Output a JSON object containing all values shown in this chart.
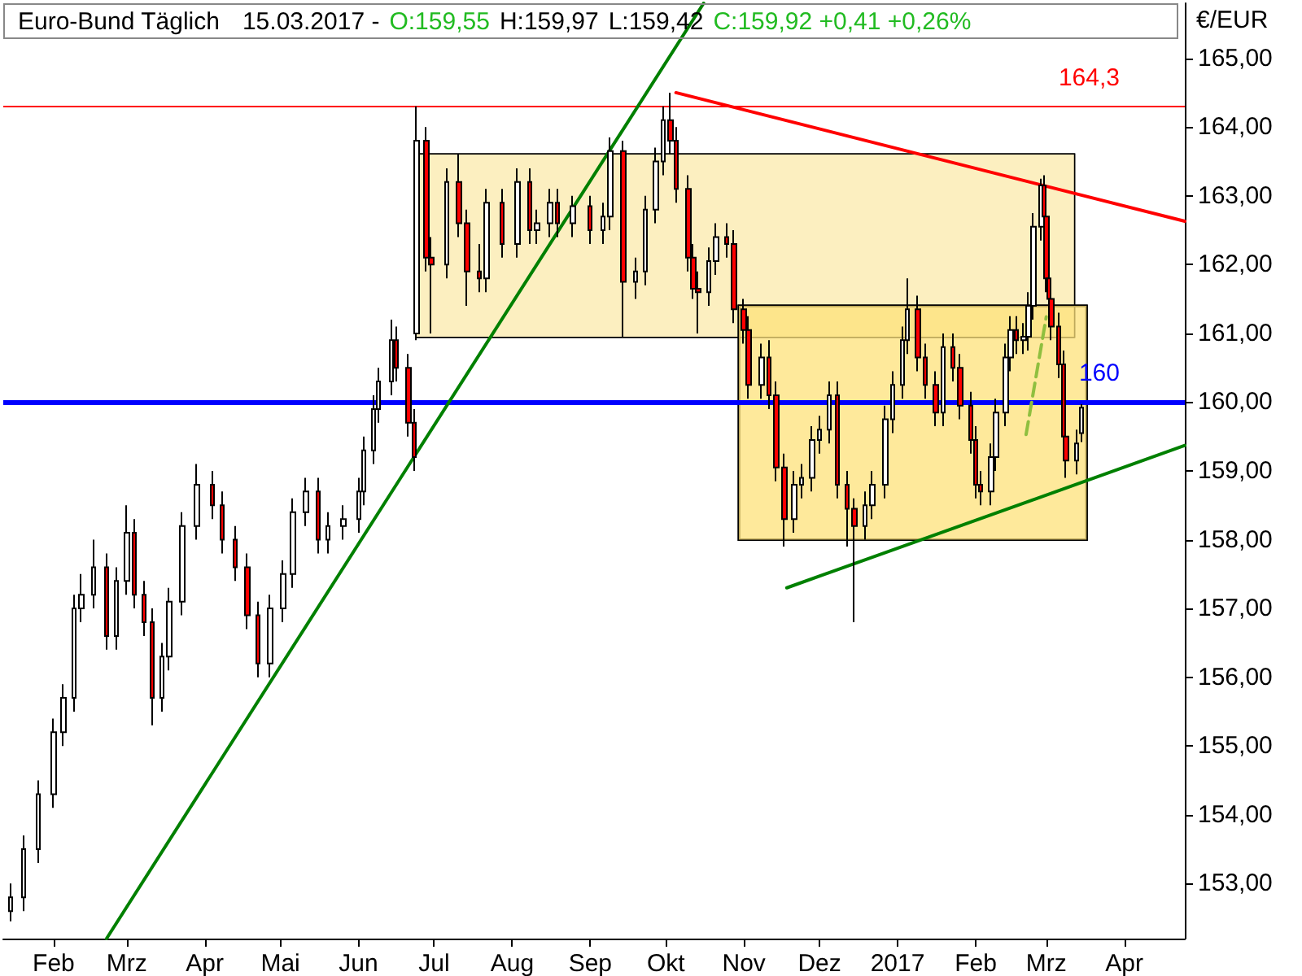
{
  "chart_data": {
    "type": "candlestick",
    "title": "Euro-Bund Täglich",
    "ylabel": "€/EUR",
    "annotations": [
      "15.03.2017 -",
      "O:159,55",
      "H:159,97",
      "L:159,42",
      "C:159,92 +0,41 +0,26%"
    ],
    "xlim": [
      "2016-01-12",
      "2017-04-25"
    ],
    "xticks": [
      {
        "value": "2016-02-01",
        "label": "Feb"
      },
      {
        "value": "2016-03-01",
        "label": "Mrz"
      },
      {
        "value": "2016-04-01",
        "label": "Apr"
      },
      {
        "value": "2016-05-01",
        "label": "Mai"
      },
      {
        "value": "2016-06-01",
        "label": "Jun"
      },
      {
        "value": "2016-07-01",
        "label": "Jul"
      },
      {
        "value": "2016-08-01",
        "label": "Aug"
      },
      {
        "value": "2016-09-01",
        "label": "Sep"
      },
      {
        "value": "2016-10-01",
        "label": "Okt"
      },
      {
        "value": "2016-11-01",
        "label": "Nov"
      },
      {
        "value": "2016-12-01",
        "label": "Dez"
      },
      {
        "value": "2017-01-01",
        "label": "2017"
      },
      {
        "value": "2017-02-01",
        "label": "Feb"
      },
      {
        "value": "2017-03-01",
        "label": "Mrz"
      },
      {
        "value": "2017-04-01",
        "label": "Apr"
      }
    ],
    "ylim": [
      152.2,
      165.8
    ],
    "yticks": [
      {
        "value": 153,
        "label": "153,00"
      },
      {
        "value": 154,
        "label": "154,00"
      },
      {
        "value": 155,
        "label": "155,00"
      },
      {
        "value": 156,
        "label": "156,00"
      },
      {
        "value": 157,
        "label": "157,00"
      },
      {
        "value": 158,
        "label": "158,00"
      },
      {
        "value": 159,
        "label": "159,00"
      },
      {
        "value": 160,
        "label": "160,00"
      },
      {
        "value": 161,
        "label": "161,00"
      },
      {
        "value": 162,
        "label": "162,00"
      },
      {
        "value": 163,
        "label": "163,00"
      },
      {
        "value": 164,
        "label": "164,00"
      },
      {
        "value": 165,
        "label": "165,00"
      }
    ],
    "grid": false,
    "marker": "none",
    "ref_lines": [
      {
        "axis": "y",
        "value": 160,
        "label": "160",
        "color": "#0000ff"
      },
      {
        "axis": "y",
        "value": 164.3,
        "label": "164,3",
        "color": "#ff0000"
      }
    ],
    "series": [
      {
        "colors": [
          "#ffffff",
          "#ffffff",
          "#ffffff",
          "#ffffff",
          "#ffffff",
          "#ffffff",
          "#ffffff",
          "#ffffff",
          "#ff0000",
          "#ffffff",
          "#ffffff",
          "#ff0000",
          "#ff0000",
          "#ff0000",
          "#ffffff",
          "#ffffff",
          "#ffffff",
          "#ffffff",
          "#ff0000",
          "#ff0000",
          "#ff0000",
          "#ff0000",
          "#ff0000",
          "#ffffff",
          "#ffffff",
          "#ffffff",
          "#ffffff",
          "#ff0000",
          "#ffffff",
          "#ffffff",
          "#ffffff",
          "#ffffff",
          "#ffffff",
          "#ffffff",
          "#ffffff",
          "#ff0000",
          "#ff0000",
          "#ff0000",
          "#ffffff",
          "#ff0000",
          "#ff0000",
          "#ffffff",
          "#ff0000",
          "#ff0000",
          "#ff0000",
          "#ffffff",
          "#ff0000",
          "#ffffff",
          "#ff0000",
          "#ffffff",
          "#ffffff",
          "#ff0000",
          "#ffffff",
          "#ff0000",
          "#ffffff",
          "#ffffff",
          "#ff0000",
          "#ffffff",
          "#ffffff",
          "#ffffff",
          "#ffffff",
          "#ff0000",
          "#ff0000",
          "#ff0000",
          "#ff0000",
          "#ff0000",
          "#ffffff",
          "#ffffff",
          "#ff0000",
          "#ff0000",
          "#ff0000",
          "#ff0000",
          "#ffffff",
          "#ff0000",
          "#ff0000",
          "#ff0000",
          "#ffffff",
          "#ffffff",
          "#ffffff",
          "#ffffff",
          "#ffffff",
          "#ff0000",
          "#ff0000",
          "#ff0000",
          "#ffffff",
          "#ffffff",
          "#ffffff",
          "#ffffff",
          "#ffffff",
          "#ffffff",
          "#ff0000",
          "#ff0000",
          "#ff0000",
          "#ffffff",
          "#ff0000",
          "#ff0000",
          "#ff0000",
          "#ff0000",
          "#ff0000",
          "#ffffff",
          "#ffffff",
          "#ffffff",
          "#ffffff",
          "#ff0000",
          "#ffffff",
          "#ffffff",
          "#ffffff",
          "#ffffff",
          "#ff0000",
          "#ff0000",
          "#ff0000",
          "#ff0000",
          "#ff0000",
          "#ff0000",
          "#ff0000",
          "#ffffff",
          "#ffffff"
        ],
        "x": [
          "2016-01-15",
          "2016-01-20",
          "2016-01-26",
          "2016-02-01",
          "2016-02-05",
          "2016-02-09",
          "2016-02-12",
          "2016-02-17",
          "2016-02-22",
          "2016-02-26",
          "2016-03-01",
          "2016-03-04",
          "2016-03-08",
          "2016-03-11",
          "2016-03-15",
          "2016-03-18",
          "2016-03-23",
          "2016-03-29",
          "2016-04-04",
          "2016-04-08",
          "2016-04-13",
          "2016-04-18",
          "2016-04-22",
          "2016-04-27",
          "2016-05-02",
          "2016-05-06",
          "2016-05-11",
          "2016-05-16",
          "2016-05-20",
          "2016-05-26",
          "2016-06-01",
          "2016-06-03",
          "2016-06-07",
          "2016-06-09",
          "2016-06-14",
          "2016-06-16",
          "2016-06-21",
          "2016-06-23",
          "2016-06-24",
          "2016-06-28",
          "2016-06-30",
          "2016-07-06",
          "2016-07-11",
          "2016-07-14",
          "2016-07-19",
          "2016-07-22",
          "2016-07-28",
          "2016-08-03",
          "2016-08-08",
          "2016-08-11",
          "2016-08-16",
          "2016-08-19",
          "2016-08-25",
          "2016-09-01",
          "2016-09-06",
          "2016-09-09",
          "2016-09-14",
          "2016-09-19",
          "2016-09-23",
          "2016-09-27",
          "2016-09-30",
          "2016-10-03",
          "2016-10-05",
          "2016-10-10",
          "2016-10-12",
          "2016-10-14",
          "2016-10-18",
          "2016-10-21",
          "2016-10-25",
          "2016-10-28",
          "2016-11-01",
          "2016-11-03",
          "2016-11-08",
          "2016-11-11",
          "2016-11-14",
          "2016-11-17",
          "2016-11-21",
          "2016-11-24",
          "2016-11-28",
          "2016-12-01",
          "2016-12-05",
          "2016-12-08",
          "2016-12-12",
          "2016-12-15",
          "2016-12-19",
          "2016-12-22",
          "2016-12-27",
          "2016-12-30",
          "2017-01-03",
          "2017-01-05",
          "2017-01-09",
          "2017-01-12",
          "2017-01-16",
          "2017-01-19",
          "2017-01-23",
          "2017-01-26",
          "2017-01-30",
          "2017-02-01",
          "2017-02-03",
          "2017-02-07",
          "2017-02-09",
          "2017-02-13",
          "2017-02-15",
          "2017-02-17",
          "2017-02-20",
          "2017-02-22",
          "2017-02-24",
          "2017-02-27",
          "2017-02-28",
          "2017-03-01",
          "2017-03-02",
          "2017-03-03",
          "2017-03-06",
          "2017-03-08",
          "2017-03-09",
          "2017-03-13",
          "2017-03-15"
        ],
        "ohlc": [
          [
            152.6,
            153.0,
            152.45,
            152.8
          ],
          [
            152.8,
            153.7,
            152.6,
            153.5
          ],
          [
            153.5,
            154.5,
            153.3,
            154.3
          ],
          [
            154.3,
            155.4,
            154.1,
            155.2
          ],
          [
            155.2,
            155.9,
            155.0,
            155.7
          ],
          [
            155.7,
            157.2,
            155.5,
            157.0
          ],
          [
            157.0,
            157.5,
            156.8,
            157.2
          ],
          [
            157.2,
            158.0,
            157.0,
            157.6
          ],
          [
            157.6,
            157.8,
            156.4,
            156.6
          ],
          [
            156.6,
            157.6,
            156.4,
            157.4
          ],
          [
            157.4,
            158.5,
            157.2,
            158.1
          ],
          [
            158.1,
            158.3,
            157.0,
            157.2
          ],
          [
            157.2,
            157.4,
            156.6,
            156.8
          ],
          [
            156.8,
            157.0,
            155.3,
            155.7
          ],
          [
            155.7,
            156.5,
            155.5,
            156.3
          ],
          [
            156.3,
            157.3,
            156.1,
            157.1
          ],
          [
            157.1,
            158.4,
            156.9,
            158.2
          ],
          [
            158.2,
            159.1,
            158.0,
            158.8
          ],
          [
            158.8,
            159.0,
            158.3,
            158.5
          ],
          [
            158.5,
            158.7,
            157.8,
            158.0
          ],
          [
            158.0,
            158.2,
            157.4,
            157.6
          ],
          [
            157.6,
            157.8,
            156.7,
            156.9
          ],
          [
            156.9,
            157.1,
            156.0,
            156.2
          ],
          [
            156.2,
            157.2,
            156.0,
            157.0
          ],
          [
            157.0,
            157.7,
            156.8,
            157.5
          ],
          [
            157.5,
            158.6,
            157.3,
            158.4
          ],
          [
            158.4,
            158.9,
            158.2,
            158.7
          ],
          [
            158.7,
            158.9,
            157.8,
            158.0
          ],
          [
            158.0,
            158.4,
            157.8,
            158.2
          ],
          [
            158.2,
            158.5,
            158.0,
            158.3
          ],
          [
            158.3,
            158.9,
            158.1,
            158.7
          ],
          [
            158.7,
            159.5,
            158.5,
            159.3
          ],
          [
            159.3,
            160.1,
            159.1,
            159.9
          ],
          [
            159.9,
            160.5,
            159.7,
            160.3
          ],
          [
            160.3,
            161.2,
            160.1,
            160.9
          ],
          [
            160.9,
            161.1,
            160.3,
            160.5
          ],
          [
            160.5,
            160.7,
            159.5,
            159.7
          ],
          [
            159.7,
            159.9,
            159.0,
            159.2
          ],
          [
            161.0,
            164.3,
            160.9,
            163.8
          ],
          [
            163.8,
            164.0,
            161.9,
            162.1
          ],
          [
            162.1,
            162.4,
            161.0,
            162.0
          ],
          [
            162.0,
            163.4,
            161.8,
            163.2
          ],
          [
            163.2,
            163.6,
            162.4,
            162.6
          ],
          [
            162.6,
            162.8,
            161.4,
            161.9
          ],
          [
            161.9,
            162.3,
            161.6,
            161.8
          ],
          [
            161.8,
            163.1,
            161.6,
            162.9
          ],
          [
            162.9,
            163.1,
            162.1,
            162.3
          ],
          [
            162.3,
            163.4,
            162.1,
            163.2
          ],
          [
            163.2,
            163.4,
            162.3,
            162.5
          ],
          [
            162.5,
            162.8,
            162.3,
            162.6
          ],
          [
            162.6,
            163.1,
            162.4,
            162.9
          ],
          [
            162.9,
            163.1,
            162.4,
            162.6
          ],
          [
            162.6,
            163.0,
            162.4,
            162.85
          ],
          [
            162.85,
            163.0,
            162.3,
            162.5
          ],
          [
            162.5,
            162.9,
            162.3,
            162.7
          ],
          [
            162.7,
            163.85,
            162.5,
            163.65
          ],
          [
            163.65,
            163.8,
            160.95,
            161.75
          ],
          [
            161.75,
            162.1,
            161.5,
            161.9
          ],
          [
            161.9,
            163.0,
            161.7,
            162.8
          ],
          [
            162.8,
            163.7,
            162.6,
            163.5
          ],
          [
            163.5,
            164.3,
            163.3,
            164.1
          ],
          [
            164.1,
            164.5,
            163.6,
            163.8
          ],
          [
            163.8,
            164.0,
            162.9,
            163.1
          ],
          [
            163.1,
            163.3,
            161.9,
            162.1
          ],
          [
            162.1,
            162.3,
            161.5,
            161.65
          ],
          [
            161.65,
            161.9,
            161.0,
            161.6
          ],
          [
            161.6,
            162.25,
            161.4,
            162.05
          ],
          [
            162.05,
            162.6,
            161.85,
            162.4
          ],
          [
            162.4,
            162.6,
            162.1,
            162.3
          ],
          [
            162.3,
            162.5,
            161.15,
            161.35
          ],
          [
            161.35,
            161.5,
            160.85,
            161.05
          ],
          [
            161.05,
            161.25,
            160.05,
            160.25
          ],
          [
            160.25,
            160.85,
            160.05,
            160.65
          ],
          [
            160.65,
            160.9,
            159.9,
            160.1
          ],
          [
            160.1,
            160.3,
            158.85,
            159.05
          ],
          [
            159.05,
            159.25,
            157.9,
            158.3
          ],
          [
            158.3,
            159.0,
            158.1,
            158.8
          ],
          [
            158.8,
            159.1,
            158.6,
            158.9
          ],
          [
            158.9,
            159.65,
            158.7,
            159.45
          ],
          [
            159.45,
            159.8,
            159.25,
            159.6
          ],
          [
            159.6,
            160.3,
            159.4,
            160.1
          ],
          [
            160.1,
            160.3,
            158.6,
            158.8
          ],
          [
            158.8,
            159.0,
            157.9,
            158.45
          ],
          [
            158.45,
            158.6,
            156.8,
            158.2
          ],
          [
            158.2,
            158.7,
            158.0,
            158.5
          ],
          [
            158.5,
            159.0,
            158.3,
            158.8
          ],
          [
            158.8,
            159.95,
            158.6,
            159.75
          ],
          [
            159.75,
            160.45,
            159.55,
            160.25
          ],
          [
            160.25,
            161.1,
            160.05,
            160.9
          ],
          [
            160.9,
            161.8,
            160.7,
            161.35
          ],
          [
            161.35,
            161.55,
            160.45,
            160.65
          ],
          [
            160.65,
            160.85,
            160.05,
            160.25
          ],
          [
            160.25,
            160.45,
            159.65,
            159.85
          ],
          [
            159.85,
            161.0,
            159.65,
            160.8
          ],
          [
            160.8,
            161.0,
            160.3,
            160.5
          ],
          [
            160.5,
            160.7,
            159.75,
            159.95
          ],
          [
            159.95,
            160.15,
            159.25,
            159.45
          ],
          [
            159.45,
            159.65,
            158.6,
            158.8
          ],
          [
            158.8,
            159.0,
            158.5,
            158.7
          ],
          [
            158.7,
            159.4,
            158.5,
            159.2
          ],
          [
            159.2,
            160.05,
            159.0,
            159.85
          ],
          [
            159.85,
            160.85,
            159.65,
            160.65
          ],
          [
            160.65,
            161.25,
            160.45,
            161.05
          ],
          [
            161.05,
            161.25,
            160.7,
            160.9
          ],
          [
            160.9,
            161.15,
            160.7,
            160.95
          ],
          [
            160.95,
            161.6,
            160.75,
            161.4
          ],
          [
            161.4,
            162.75,
            161.2,
            162.55
          ],
          [
            162.55,
            163.25,
            162.35,
            163.15
          ],
          [
            163.15,
            163.3,
            162.5,
            162.7
          ],
          [
            162.7,
            162.9,
            161.6,
            161.8
          ],
          [
            161.8,
            162.0,
            161.3,
            161.5
          ],
          [
            161.5,
            161.7,
            160.9,
            161.1
          ],
          [
            161.1,
            161.3,
            160.35,
            160.55
          ],
          [
            160.55,
            160.75,
            159.3,
            159.5
          ],
          [
            159.5,
            159.7,
            158.9,
            159.15
          ],
          [
            159.15,
            159.6,
            158.95,
            159.4
          ],
          [
            159.55,
            159.97,
            159.42,
            159.92
          ]
        ]
      },
      {
        "type": "area",
        "color": "#fcefc0",
        "x": [
          "2016-06-24",
          "2017-03-12"
        ],
        "values": [
          null,
          null
        ],
        "lower": [
          160.95,
          160.95
        ],
        "upper": [
          163.6,
          163.6
        ]
      },
      {
        "type": "area",
        "color": "#fde27a",
        "x": [
          "2016-10-30",
          "2017-03-17"
        ],
        "values": [
          null,
          null
        ],
        "lower": [
          158.0,
          158.0
        ],
        "upper": [
          161.4,
          161.4
        ]
      },
      {
        "type": "line",
        "color": "#ff0000",
        "x": [
          "2016-10-05",
          "2017-04-25"
        ],
        "values": [
          164.5,
          162.63
        ]
      },
      {
        "type": "line",
        "color": "#008000",
        "x": [
          "2016-02-22",
          "2016-10-16"
        ],
        "values": [
          152.2,
          165.8
        ]
      },
      {
        "type": "line",
        "color": "#008000",
        "x": [
          "2016-11-18",
          "2017-04-25"
        ],
        "values": [
          157.3,
          159.37
        ]
      },
      {
        "type": "line",
        "color": "#8fbf3f",
        "line_style": "dashed",
        "x": [
          "2017-02-21",
          "2017-03-01"
        ],
        "values": [
          159.53,
          161.24
        ]
      }
    ]
  }
}
